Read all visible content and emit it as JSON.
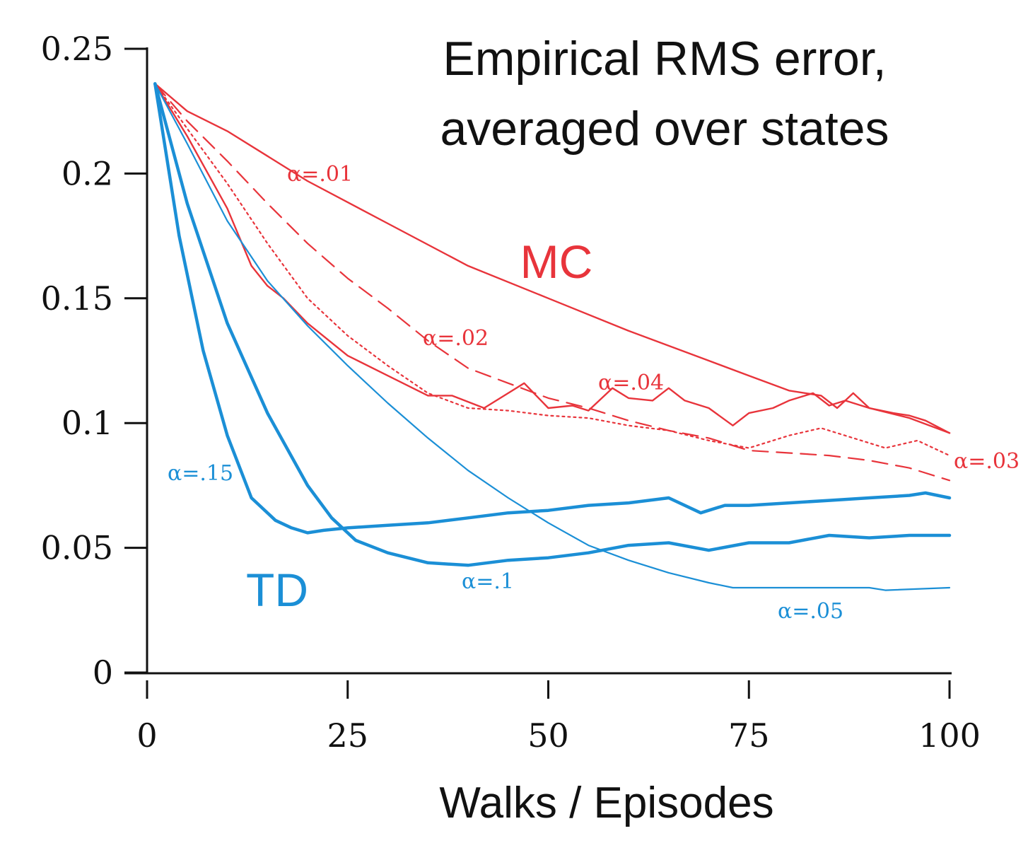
{
  "chart_data": {
    "type": "line",
    "title": [
      "Empirical RMS error,",
      "averaged over states"
    ],
    "xlabel": "Walks / Episodes",
    "ylabel": "",
    "xlim": [
      0,
      100
    ],
    "ylim": [
      0,
      0.25
    ],
    "xticks": [
      0,
      25,
      50,
      75,
      100
    ],
    "xtick_labels": [
      "0",
      "25",
      "50",
      "75",
      "100"
    ],
    "yticks": [
      0,
      0.05,
      0.1,
      0.15,
      0.2,
      0.25
    ],
    "ytick_labels": [
      "0",
      "0.05",
      "0.1",
      "0.15",
      "0.2",
      "0.25"
    ],
    "grid": false,
    "groups": [
      {
        "name": "MC",
        "color": "#e8343b"
      },
      {
        "name": "TD",
        "color": "#1b8fd6"
      }
    ],
    "series": [
      {
        "name": "MC α=.01",
        "label": "α=.01",
        "group": "MC",
        "color": "#e8343b",
        "style": "solid",
        "width": 2.4,
        "x": [
          1,
          5,
          10,
          15,
          20,
          30,
          40,
          50,
          60,
          70,
          75,
          80,
          84,
          86,
          88,
          90,
          95,
          100
        ],
        "y": [
          0.236,
          0.225,
          0.217,
          0.207,
          0.197,
          0.18,
          0.163,
          0.15,
          0.137,
          0.125,
          0.119,
          0.113,
          0.111,
          0.106,
          0.112,
          0.106,
          0.102,
          0.096
        ]
      },
      {
        "name": "MC α=.02",
        "label": "α=.02",
        "group": "MC",
        "color": "#e8343b",
        "style": "dashed",
        "width": 2.2,
        "x": [
          1,
          5,
          10,
          15,
          20,
          25,
          30,
          35,
          40,
          45,
          50,
          55,
          60,
          65,
          70,
          75,
          80,
          85,
          90,
          95,
          100
        ],
        "y": [
          0.236,
          0.221,
          0.205,
          0.188,
          0.172,
          0.158,
          0.146,
          0.133,
          0.122,
          0.116,
          0.11,
          0.106,
          0.101,
          0.097,
          0.094,
          0.089,
          0.088,
          0.087,
          0.085,
          0.082,
          0.077
        ]
      },
      {
        "name": "MC α=.03",
        "label": "α=.03",
        "group": "MC",
        "color": "#e8343b",
        "style": "dotted",
        "width": 2.2,
        "x": [
          1,
          5,
          10,
          15,
          20,
          25,
          30,
          35,
          40,
          45,
          50,
          55,
          60,
          65,
          70,
          75,
          80,
          84,
          88,
          92,
          96,
          100
        ],
        "y": [
          0.236,
          0.218,
          0.196,
          0.172,
          0.15,
          0.135,
          0.123,
          0.112,
          0.106,
          0.105,
          0.103,
          0.102,
          0.099,
          0.097,
          0.093,
          0.09,
          0.095,
          0.098,
          0.094,
          0.09,
          0.093,
          0.087
        ]
      },
      {
        "name": "MC α=.04",
        "label": "α=.04",
        "group": "MC",
        "color": "#e8343b",
        "style": "solid",
        "width": 2.4,
        "x": [
          1,
          5,
          10,
          13,
          15,
          17,
          20,
          25,
          30,
          35,
          38,
          42,
          45,
          47,
          50,
          53,
          55,
          58,
          60,
          63,
          65,
          67,
          70,
          73,
          75,
          78,
          80,
          83,
          85,
          87,
          90,
          93,
          95,
          97,
          100
        ],
        "y": [
          0.236,
          0.215,
          0.186,
          0.163,
          0.155,
          0.15,
          0.14,
          0.127,
          0.119,
          0.111,
          0.111,
          0.106,
          0.112,
          0.116,
          0.106,
          0.107,
          0.105,
          0.114,
          0.11,
          0.109,
          0.114,
          0.109,
          0.106,
          0.099,
          0.104,
          0.106,
          0.109,
          0.112,
          0.107,
          0.109,
          0.106,
          0.104,
          0.103,
          0.101,
          0.096
        ]
      },
      {
        "name": "TD α=.05",
        "label": "α=.05",
        "group": "TD",
        "color": "#1b8fd6",
        "style": "solid",
        "width": 2.2,
        "x": [
          1,
          5,
          10,
          15,
          20,
          25,
          30,
          35,
          40,
          45,
          50,
          55,
          60,
          65,
          70,
          73,
          75,
          80,
          90,
          92,
          100
        ],
        "y": [
          0.236,
          0.212,
          0.181,
          0.157,
          0.139,
          0.123,
          0.108,
          0.094,
          0.081,
          0.07,
          0.06,
          0.051,
          0.045,
          0.04,
          0.036,
          0.034,
          0.034,
          0.034,
          0.034,
          0.033,
          0.034
        ]
      },
      {
        "name": "TD α=.1",
        "label": "α=.1",
        "group": "TD",
        "color": "#1b8fd6",
        "style": "solid",
        "width": 4.5,
        "x": [
          1,
          5,
          10,
          15,
          20,
          23,
          26,
          30,
          35,
          40,
          45,
          50,
          55,
          60,
          65,
          70,
          75,
          80,
          85,
          90,
          95,
          100
        ],
        "y": [
          0.236,
          0.188,
          0.14,
          0.104,
          0.075,
          0.062,
          0.053,
          0.048,
          0.044,
          0.043,
          0.045,
          0.046,
          0.048,
          0.051,
          0.052,
          0.049,
          0.052,
          0.052,
          0.055,
          0.054,
          0.055,
          0.055
        ]
      },
      {
        "name": "TD α=.15",
        "label": "α=.15",
        "group": "TD",
        "color": "#1b8fd6",
        "style": "solid",
        "width": 4.5,
        "x": [
          1,
          4,
          7,
          10,
          13,
          16,
          18,
          20,
          22,
          25,
          30,
          35,
          40,
          45,
          50,
          55,
          60,
          65,
          69,
          72,
          75,
          80,
          85,
          90,
          95,
          97,
          100
        ],
        "y": [
          0.236,
          0.175,
          0.129,
          0.095,
          0.07,
          0.061,
          0.058,
          0.056,
          0.057,
          0.058,
          0.059,
          0.06,
          0.062,
          0.064,
          0.065,
          0.067,
          0.068,
          0.07,
          0.064,
          0.067,
          0.067,
          0.068,
          0.069,
          0.07,
          0.071,
          0.072,
          0.07
        ]
      }
    ]
  }
}
